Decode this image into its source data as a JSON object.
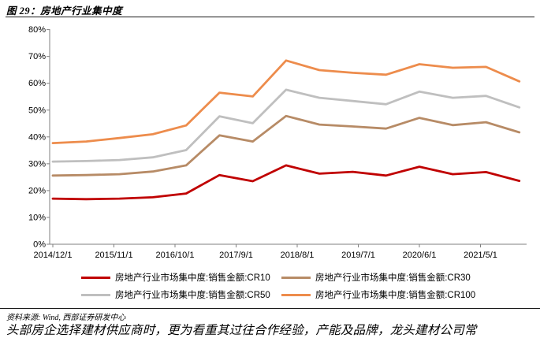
{
  "header": {
    "title": "图 29：房地产行业集中度"
  },
  "chart_data": {
    "type": "line",
    "title": "房地产行业集中度",
    "x": [
      "2014/12",
      "2015/6",
      "2015/12",
      "2016/6",
      "2016/12",
      "2017/6",
      "2017/12",
      "2018/6",
      "2018/12",
      "2019/6",
      "2019/12",
      "2020/6",
      "2020/12",
      "2021/6",
      "2021/12"
    ],
    "x_tick_labels": [
      "2014/12/1",
      "2015/11/1",
      "2016/10/1",
      "2017/9/1",
      "2018/8/1",
      "2019/7/1",
      "2020/6/1",
      "2021/5/1"
    ],
    "y_tick_labels": [
      "0%",
      "10%",
      "20%",
      "30%",
      "40%",
      "50%",
      "60%",
      "70%",
      "80%"
    ],
    "ylim": [
      0,
      80
    ],
    "grid": false,
    "legend_position": "bottom",
    "series": [
      {
        "name": "房地产行业市场集中度:销售金额:CR10",
        "key": "cr10",
        "color": "#c00000",
        "values": [
          17.0,
          16.8,
          17.0,
          17.5,
          18.9,
          25.8,
          23.5,
          29.4,
          26.3,
          27.0,
          25.6,
          28.9,
          26.1,
          26.9,
          23.6
        ]
      },
      {
        "name": "房地产行业市场集中度:销售金额:CR30",
        "key": "cr30",
        "color": "#b78b66",
        "values": [
          25.6,
          25.8,
          26.1,
          27.1,
          29.4,
          40.6,
          38.3,
          47.8,
          44.6,
          43.9,
          43.1,
          47.1,
          44.4,
          45.5,
          41.7
        ]
      },
      {
        "name": "房地产行业市场集中度:销售金额:CR50",
        "key": "cr50",
        "color": "#bfbfbf",
        "values": [
          30.8,
          31.0,
          31.4,
          32.4,
          35.1,
          47.7,
          45.1,
          57.6,
          54.6,
          53.4,
          52.2,
          56.9,
          54.6,
          55.3,
          51.0
        ]
      },
      {
        "name": "房地产行业市场集中度:销售金额:CR100",
        "key": "cr100",
        "color": "#ed8c4c",
        "values": [
          37.7,
          38.3,
          39.6,
          41.0,
          44.3,
          56.5,
          55.1,
          68.5,
          64.9,
          63.9,
          63.2,
          67.1,
          65.8,
          66.1,
          60.7
        ]
      }
    ]
  },
  "footer": {
    "source": "资料来源: Wind, 西部证券研发中心",
    "body_text": "头部房企选择建材供应商时，更为看重其过往合作经验，产能及品牌，龙头建材公司常"
  }
}
